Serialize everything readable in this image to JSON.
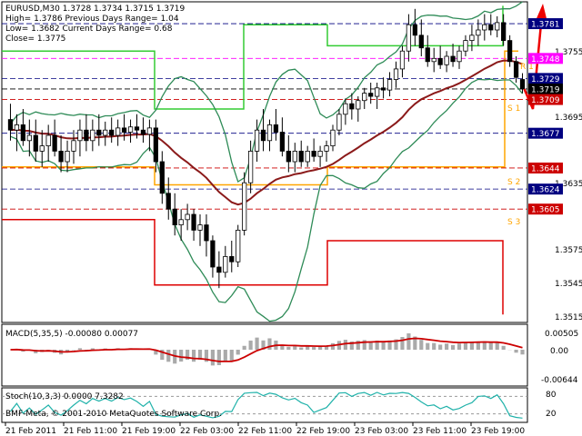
{
  "header": {
    "line1": "EURUSD,M30  1.3728 1.3734 1.3715 1.3719",
    "line2": "High= 1.3786   Previous Days Range= 1.04",
    "line3": "Low= 1.3682   Current Days Range= 0.68",
    "line4": "Close= 1.3775"
  },
  "price_axis_ticks": [
    "1.3755",
    "1.3695",
    "1.3635",
    "1.3575",
    "1.3545",
    "1.3515"
  ],
  "price_tags": [
    {
      "label": "1.3781",
      "color": "#000080"
    },
    {
      "label": "1.3748",
      "color": "#ff00ff"
    },
    {
      "label": "1.3729",
      "color": "#000080"
    },
    {
      "label": "1.3719",
      "color": "#000000"
    },
    {
      "label": "1.3709",
      "color": "#cc0000"
    },
    {
      "label": "1.3677",
      "color": "#000080"
    },
    {
      "label": "1.3644",
      "color": "#cc0000"
    },
    {
      "label": "1.3624",
      "color": "#000080"
    },
    {
      "label": "1.3605",
      "color": "#cc0000"
    }
  ],
  "level_labels": [
    "S 1",
    "S 2",
    "S 3",
    "R 1"
  ],
  "macd": {
    "label": "MACD(5,35,5) -0.00080 0.00077",
    "ticks": [
      "0.00505",
      "0.00",
      "-0.00644"
    ]
  },
  "stoch": {
    "label": "Stoch(10,3,3) 0.0000 7.3282",
    "ticks": [
      "80",
      "20"
    ],
    "copyright": "BMF-Meta, © 2001-2010 MetaQuotes Software Corp."
  },
  "time_axis": [
    "21 Feb 2011",
    "21 Feb 11:00",
    "21 Feb 19:00",
    "22 Feb 03:00",
    "22 Feb 11:00",
    "22 Feb 19:00",
    "23 Feb 03:00",
    "23 Feb 11:00",
    "23 Feb 19:00"
  ],
  "colors": {
    "bollinger": "#2e8b57",
    "ema": "#8b1a1a",
    "green_channel": "#33cc33",
    "orange_channel": "#ffa500",
    "red_channel": "#dd0000",
    "arrow": "#ee0000"
  },
  "chart_data": {
    "type": "candlestick",
    "symbol": "EURUSD",
    "timeframe": "M30",
    "ylim": [
      1.35,
      1.38
    ],
    "ohlc": [
      [
        1.369,
        1.3705,
        1.367,
        1.368
      ],
      [
        1.368,
        1.3695,
        1.366,
        1.3685
      ],
      [
        1.3685,
        1.37,
        1.3665,
        1.367
      ],
      [
        1.367,
        1.369,
        1.3655,
        1.3675
      ],
      [
        1.3675,
        1.369,
        1.365,
        1.366
      ],
      [
        1.366,
        1.368,
        1.3645,
        1.3665
      ],
      [
        1.3665,
        1.3685,
        1.365,
        1.3675
      ],
      [
        1.3675,
        1.369,
        1.3655,
        1.366
      ],
      [
        1.366,
        1.3675,
        1.364,
        1.365
      ],
      [
        1.365,
        1.367,
        1.364,
        1.366
      ],
      [
        1.366,
        1.368,
        1.3648,
        1.367
      ],
      [
        1.367,
        1.369,
        1.3655,
        1.368
      ],
      [
        1.368,
        1.3695,
        1.366,
        1.367
      ],
      [
        1.367,
        1.369,
        1.366,
        1.368
      ],
      [
        1.368,
        1.3695,
        1.3665,
        1.3675
      ],
      [
        1.3675,
        1.3688,
        1.3665,
        1.368
      ],
      [
        1.368,
        1.3692,
        1.3668,
        1.3675
      ],
      [
        1.3675,
        1.369,
        1.3665,
        1.3682
      ],
      [
        1.3682,
        1.3695,
        1.367,
        1.3678
      ],
      [
        1.3678,
        1.369,
        1.3668,
        1.3683
      ],
      [
        1.3683,
        1.3695,
        1.3672,
        1.368
      ],
      [
        1.368,
        1.3692,
        1.3668,
        1.3676
      ],
      [
        1.3676,
        1.369,
        1.366,
        1.3682
      ],
      [
        1.3682,
        1.369,
        1.364,
        1.365
      ],
      [
        1.365,
        1.366,
        1.361,
        1.362
      ],
      [
        1.362,
        1.3635,
        1.3595,
        1.3605
      ],
      [
        1.3605,
        1.362,
        1.358,
        1.359
      ],
      [
        1.359,
        1.3605,
        1.3575,
        1.3595
      ],
      [
        1.3595,
        1.361,
        1.3585,
        1.36
      ],
      [
        1.36,
        1.3605,
        1.3575,
        1.3585
      ],
      [
        1.3585,
        1.36,
        1.357,
        1.359
      ],
      [
        1.359,
        1.36,
        1.356,
        1.3575
      ],
      [
        1.3575,
        1.358,
        1.354,
        1.355
      ],
      [
        1.355,
        1.3565,
        1.353,
        1.3545
      ],
      [
        1.3545,
        1.357,
        1.354,
        1.356
      ],
      [
        1.356,
        1.3575,
        1.3545,
        1.3555
      ],
      [
        1.3555,
        1.359,
        1.355,
        1.3585
      ],
      [
        1.3585,
        1.364,
        1.358,
        1.363
      ],
      [
        1.363,
        1.367,
        1.362,
        1.366
      ],
      [
        1.366,
        1.369,
        1.365,
        1.368
      ],
      [
        1.368,
        1.37,
        1.366,
        1.367
      ],
      [
        1.367,
        1.369,
        1.366,
        1.3685
      ],
      [
        1.3685,
        1.37,
        1.367,
        1.3678
      ],
      [
        1.3678,
        1.3692,
        1.3655,
        1.366
      ],
      [
        1.366,
        1.3675,
        1.364,
        1.365
      ],
      [
        1.365,
        1.3668,
        1.364,
        1.366
      ],
      [
        1.366,
        1.367,
        1.3645,
        1.365
      ],
      [
        1.365,
        1.3665,
        1.3645,
        1.366
      ],
      [
        1.366,
        1.3672,
        1.365,
        1.3655
      ],
      [
        1.3655,
        1.3665,
        1.3645,
        1.366
      ],
      [
        1.366,
        1.367,
        1.365,
        1.3665
      ],
      [
        1.3665,
        1.3685,
        1.366,
        1.368
      ],
      [
        1.368,
        1.37,
        1.3675,
        1.3695
      ],
      [
        1.3695,
        1.371,
        1.3685,
        1.3705
      ],
      [
        1.3705,
        1.3715,
        1.369,
        1.37
      ],
      [
        1.37,
        1.3712,
        1.3688,
        1.3708
      ],
      [
        1.3708,
        1.372,
        1.37,
        1.3715
      ],
      [
        1.3715,
        1.3725,
        1.3705,
        1.3712
      ],
      [
        1.3712,
        1.3725,
        1.37,
        1.372
      ],
      [
        1.372,
        1.373,
        1.371,
        1.3718
      ],
      [
        1.3718,
        1.3735,
        1.3712,
        1.3728
      ],
      [
        1.3728,
        1.3745,
        1.372,
        1.3738
      ],
      [
        1.3738,
        1.376,
        1.373,
        1.3755
      ],
      [
        1.3755,
        1.379,
        1.3745,
        1.378
      ],
      [
        1.378,
        1.3795,
        1.376,
        1.377
      ],
      [
        1.377,
        1.3785,
        1.375,
        1.3758
      ],
      [
        1.3758,
        1.377,
        1.374,
        1.3745
      ],
      [
        1.3745,
        1.3758,
        1.3735,
        1.3748
      ],
      [
        1.3748,
        1.376,
        1.3738,
        1.3742
      ],
      [
        1.3742,
        1.3755,
        1.3735,
        1.375
      ],
      [
        1.375,
        1.3762,
        1.374,
        1.3745
      ],
      [
        1.3745,
        1.376,
        1.3738,
        1.3755
      ],
      [
        1.3755,
        1.377,
        1.375,
        1.3765
      ],
      [
        1.3765,
        1.378,
        1.3755,
        1.377
      ],
      [
        1.377,
        1.3785,
        1.376,
        1.3775
      ],
      [
        1.3775,
        1.379,
        1.3765,
        1.378
      ],
      [
        1.378,
        1.379,
        1.377,
        1.3775
      ],
      [
        1.3775,
        1.3788,
        1.3768,
        1.3782
      ],
      [
        1.3782,
        1.379,
        1.376,
        1.3765
      ],
      [
        1.3765,
        1.377,
        1.374,
        1.3745
      ],
      [
        1.3745,
        1.375,
        1.3725,
        1.373
      ],
      [
        1.3728,
        1.3734,
        1.3715,
        1.3719
      ]
    ]
  }
}
